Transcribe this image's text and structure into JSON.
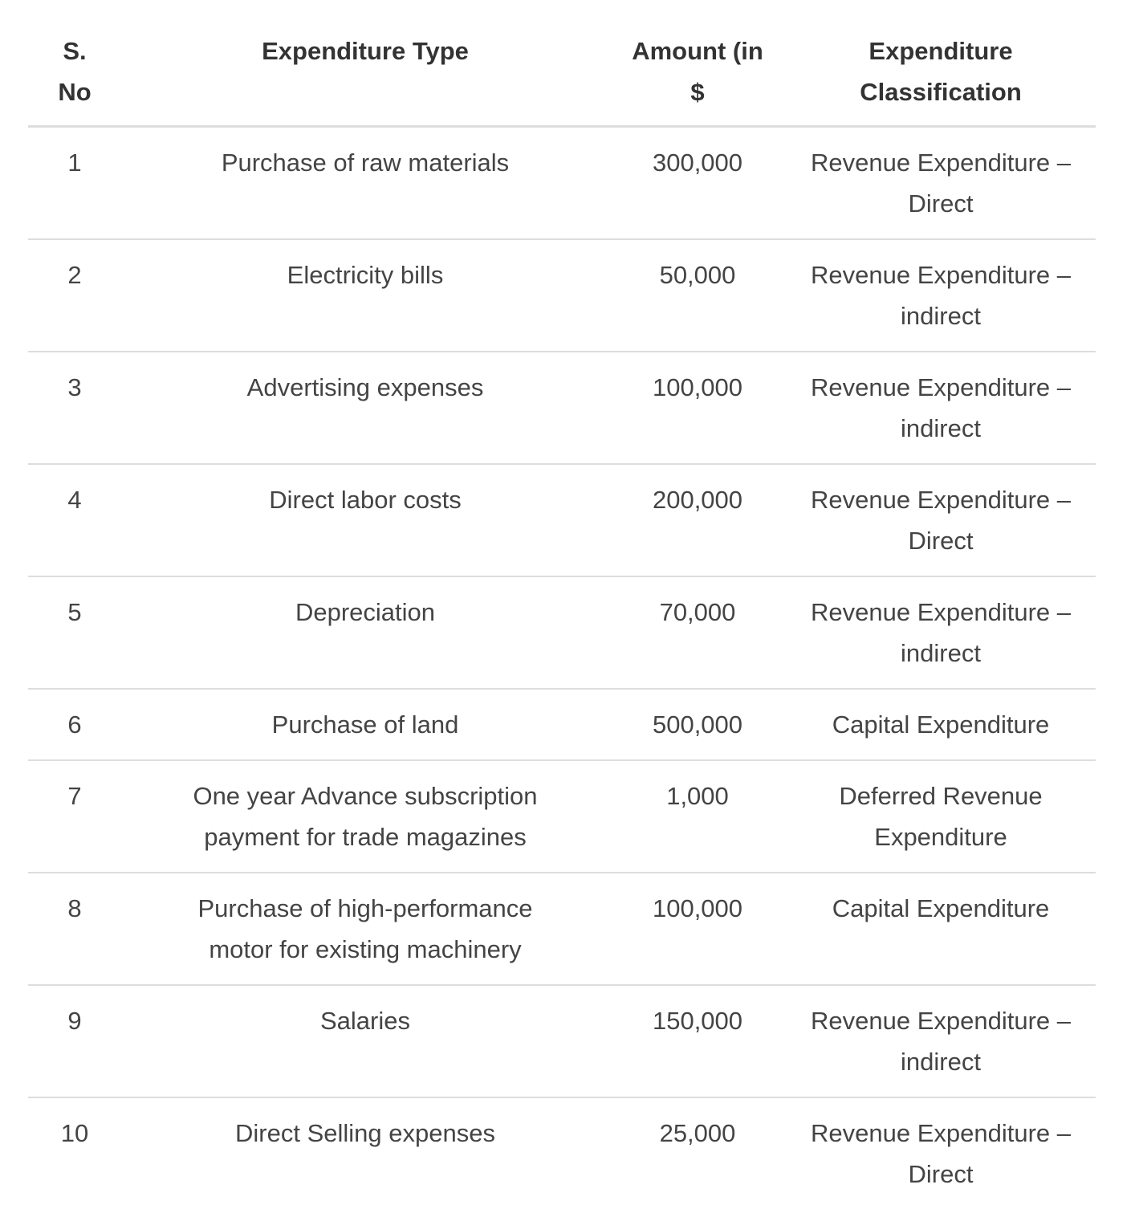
{
  "table": {
    "headers": [
      "S. No",
      "Expenditure Type",
      "Amount (in $",
      "Expenditure Classification"
    ],
    "rows": [
      [
        "1",
        "Purchase of raw materials",
        "300,000",
        "Revenue Expenditure – Direct"
      ],
      [
        "2",
        "Electricity bills",
        "50,000",
        "Revenue Expenditure – indirect"
      ],
      [
        "3",
        "Advertising expenses",
        "100,000",
        "Revenue Expenditure – indirect"
      ],
      [
        "4",
        "Direct labor costs",
        "200,000",
        "Revenue Expenditure – Direct"
      ],
      [
        "5",
        "Depreciation",
        "70,000",
        "Revenue Expenditure – indirect"
      ],
      [
        "6",
        "Purchase of land",
        "500,000",
        "Capital Expenditure"
      ],
      [
        "7",
        "One year Advance subscription payment for trade magazines",
        "1,000",
        "Deferred Revenue Expenditure"
      ],
      [
        "8",
        "Purchase of high-performance motor for existing machinery",
        "100,000",
        "Capital Expenditure"
      ],
      [
        "9",
        "Salaries",
        "150,000",
        "Revenue Expenditure – indirect"
      ],
      [
        "10",
        "Direct Selling expenses",
        "25,000",
        "Revenue Expenditure – Direct"
      ]
    ]
  }
}
